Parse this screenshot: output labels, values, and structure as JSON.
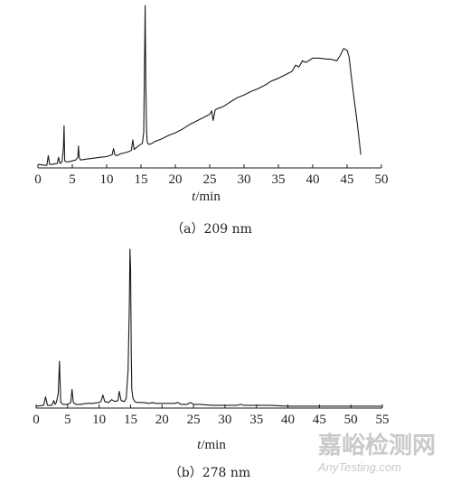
{
  "chart_data": [
    {
      "type": "line",
      "caption": "（a）209 nm",
      "xlabel_italic": "t",
      "xlabel_unit": "/min",
      "xlim": [
        0,
        50
      ],
      "xticks": [
        0,
        5,
        10,
        15,
        20,
        25,
        30,
        35,
        40,
        45,
        50
      ],
      "yaxis_visible": false,
      "grid": false,
      "series": [
        {
          "x": [
            0,
            1,
            1.3,
            1.5,
            1.7,
            2,
            2.8,
            3.0,
            3.2,
            3.5,
            3.7,
            3.8,
            3.9,
            4.1,
            4.5,
            5,
            5.5,
            5.8,
            5.9,
            6.0,
            6.2,
            7,
            8,
            9,
            10,
            10.8,
            11,
            11.2,
            11.5,
            12,
            13,
            13.6,
            13.8,
            14.0,
            14.3,
            14.8,
            15.2,
            15.4,
            15.5,
            15.6,
            15.7,
            15.8,
            15.9,
            16.0,
            16.1,
            16.3,
            16.6,
            17,
            18,
            19,
            20,
            21,
            22,
            23,
            24,
            25,
            25.3,
            25.5,
            25.8,
            26,
            27,
            28,
            29,
            30,
            31,
            32,
            33,
            34,
            35,
            36,
            37,
            37.5,
            38,
            38.5,
            39,
            40,
            41,
            42,
            42.5,
            43,
            43.5,
            44,
            44.5,
            45,
            45.3,
            45.6,
            46,
            46.5,
            47
          ],
          "y": [
            4,
            3,
            3,
            14,
            4,
            4,
            5,
            12,
            5,
            7,
            22,
            48,
            8,
            7,
            7,
            8,
            9,
            12,
            25,
            12,
            9,
            10,
            11,
            12,
            13,
            15,
            22,
            15,
            14,
            16,
            18,
            20,
            32,
            21,
            23,
            26,
            28,
            40,
            110,
            192,
            100,
            45,
            30,
            28,
            27,
            27,
            28,
            30,
            33,
            37,
            40,
            44,
            49,
            53,
            57,
            61,
            65,
            54,
            66,
            67,
            70,
            75,
            80,
            83,
            87,
            90,
            94,
            99,
            102,
            106,
            110,
            117,
            115,
            122,
            120,
            125,
            125,
            124,
            124,
            123,
            122,
            128,
            136,
            134,
            126,
            105,
            80,
            50,
            15
          ]
        }
      ]
    },
    {
      "type": "line",
      "caption": "（b）278 nm",
      "xlabel_italic": "t",
      "xlabel_unit": "/min",
      "xlim": [
        0,
        55
      ],
      "xticks": [
        0,
        5,
        10,
        15,
        20,
        25,
        30,
        35,
        40,
        45,
        50,
        55
      ],
      "yaxis_visible": false,
      "grid": false,
      "series": [
        {
          "x": [
            0,
            1.2,
            1.5,
            1.8,
            2.5,
            2.8,
            3.0,
            3.2,
            3.5,
            3.7,
            3.9,
            4.3,
            5,
            5.5,
            5.7,
            5.9,
            6.3,
            7,
            8,
            9,
            10,
            10.3,
            10.6,
            10.9,
            11.5,
            12,
            12.5,
            13,
            13.2,
            13.5,
            14,
            14.3,
            14.6,
            14.8,
            14.9,
            15.0,
            15.1,
            15.2,
            15.4,
            15.7,
            16,
            17,
            18,
            18.5,
            19,
            20,
            21,
            22,
            22.5,
            23,
            24,
            24.5,
            25,
            26,
            28,
            30,
            32,
            32.5,
            33,
            35,
            37,
            40,
            45,
            50,
            55
          ],
          "y": [
            2,
            3,
            12,
            3,
            3,
            8,
            4,
            6,
            15,
            50,
            6,
            4,
            4,
            6,
            20,
            6,
            4,
            4,
            5,
            5,
            6,
            7,
            14,
            7,
            6,
            9,
            7,
            8,
            18,
            8,
            7,
            10,
            40,
            110,
            180,
            150,
            60,
            20,
            10,
            7,
            6,
            6,
            5,
            6,
            5,
            5,
            5,
            5,
            6,
            4,
            4,
            6,
            4,
            4,
            3,
            3,
            3,
            4,
            3,
            3,
            3,
            2,
            2,
            2,
            2
          ]
        }
      ]
    }
  ],
  "watermark": {
    "cn": "嘉峪检测网",
    "en": "AnyTesting.com"
  }
}
